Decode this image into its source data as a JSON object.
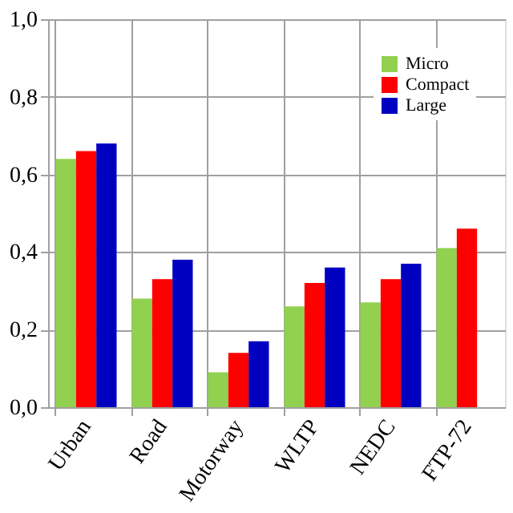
{
  "chart_data": {
    "type": "bar",
    "categories": [
      "Urban",
      "Road",
      "Motorway",
      "WLTP",
      "NEDC",
      "FTP-72"
    ],
    "series": [
      {
        "name": "Micro",
        "color": "#92d050",
        "values": [
          0.64,
          0.28,
          0.09,
          0.26,
          0.27,
          0.41
        ]
      },
      {
        "name": "Compact",
        "color": "#ff0000",
        "values": [
          0.66,
          0.33,
          0.14,
          0.32,
          0.33,
          0.46
        ]
      },
      {
        "name": "Large",
        "color": "#0000c0",
        "values": [
          0.68,
          0.38,
          0.17,
          0.36,
          0.37,
          null
        ]
      }
    ],
    "ylim": [
      0,
      1
    ],
    "yticks": [
      {
        "value": 0,
        "label": "0,0"
      },
      {
        "value": 0.2,
        "label": "0,2"
      },
      {
        "value": 0.4,
        "label": "0,4"
      },
      {
        "value": 0.6,
        "label": "0,6"
      },
      {
        "value": 0.8,
        "label": "0,8"
      },
      {
        "value": 1,
        "label": "1,0"
      }
    ],
    "grid": true,
    "legend": "top right"
  }
}
